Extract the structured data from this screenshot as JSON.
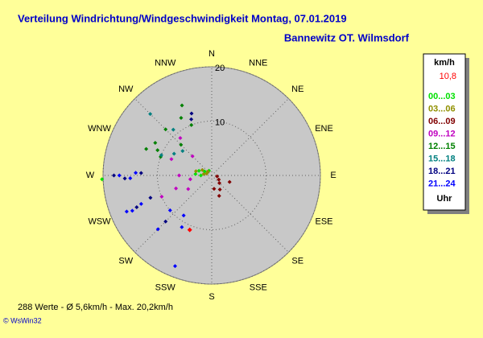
{
  "chart_data": {
    "type": "polar-scatter",
    "title": "Verteilung Windrichtung/Windgeschwindigkeit  Montag, 07.01.2019",
    "subtitle": "Bannewitz OT. Wilmsdorf",
    "directions": [
      "N",
      "NNE",
      "NE",
      "ENE",
      "E",
      "ESE",
      "SE",
      "SSE",
      "S",
      "SSW",
      "SW",
      "WSW",
      "W",
      "WNW",
      "NW",
      "NNW"
    ],
    "rlim": [
      0,
      20
    ],
    "rticks": [
      10,
      20
    ],
    "legend_header": "km/h",
    "legend_footer": "Uhr",
    "current": {
      "x": 202,
      "value": 10.8,
      "value_label": "10,8",
      "color": "#ff0000"
    },
    "series": [
      {
        "name": "00...03",
        "color": "#00e000",
        "x": [
          270,
          275,
          300,
          290,
          330,
          268
        ],
        "values": [
          2,
          3,
          1.5,
          2.5,
          1,
          20.2
        ]
      },
      {
        "name": "03...06",
        "color": "#909000",
        "x": [
          290,
          300,
          280,
          315,
          285
        ],
        "values": [
          1,
          2,
          1.5,
          1,
          3
        ]
      },
      {
        "name": "06...09",
        "color": "#800000",
        "x": [
          110,
          135,
          150,
          160,
          120,
          170,
          100
        ],
        "values": [
          3.5,
          2,
          3,
          4,
          1.5,
          2.5,
          1
        ]
      },
      {
        "name": "09...12",
        "color": "#c000c0",
        "x": [
          270,
          292,
          315,
          250,
          260,
          247,
          320,
          240
        ],
        "values": [
          6,
          8,
          5,
          7,
          4,
          10,
          9,
          5
        ]
      },
      {
        "name": "12...15",
        "color": "#008000",
        "x": [
          292,
          300,
          315,
          338,
          337,
          315,
          290,
          295,
          332
        ],
        "values": [
          13,
          12,
          12,
          10,
          14,
          8,
          10,
          11,
          12
        ]
      },
      {
        "name": "15...18",
        "color": "#008080",
        "x": [
          315,
          292,
          300,
          320,
          310
        ],
        "values": [
          16,
          10,
          8,
          11,
          7
        ]
      },
      {
        "name": "18...21",
        "color": "#000080",
        "x": [
          270,
          268,
          250,
          247,
          340,
          342,
          225,
          272
        ],
        "values": [
          18,
          16,
          12,
          15,
          11,
          12,
          12,
          13
        ]
      },
      {
        "name": "21...24",
        "color": "#0000ff",
        "x": [
          247,
          248,
          230,
          225,
          215,
          202,
          210,
          270,
          272,
          246,
          268
        ],
        "values": [
          17,
          14,
          10,
          14,
          9,
          18,
          11,
          17,
          14,
          16,
          15
        ]
      }
    ],
    "footer": "288 Werte  -  Ø 5,6km/h  -  Max. 20,2km/h",
    "copyright": "© WsWin32"
  }
}
